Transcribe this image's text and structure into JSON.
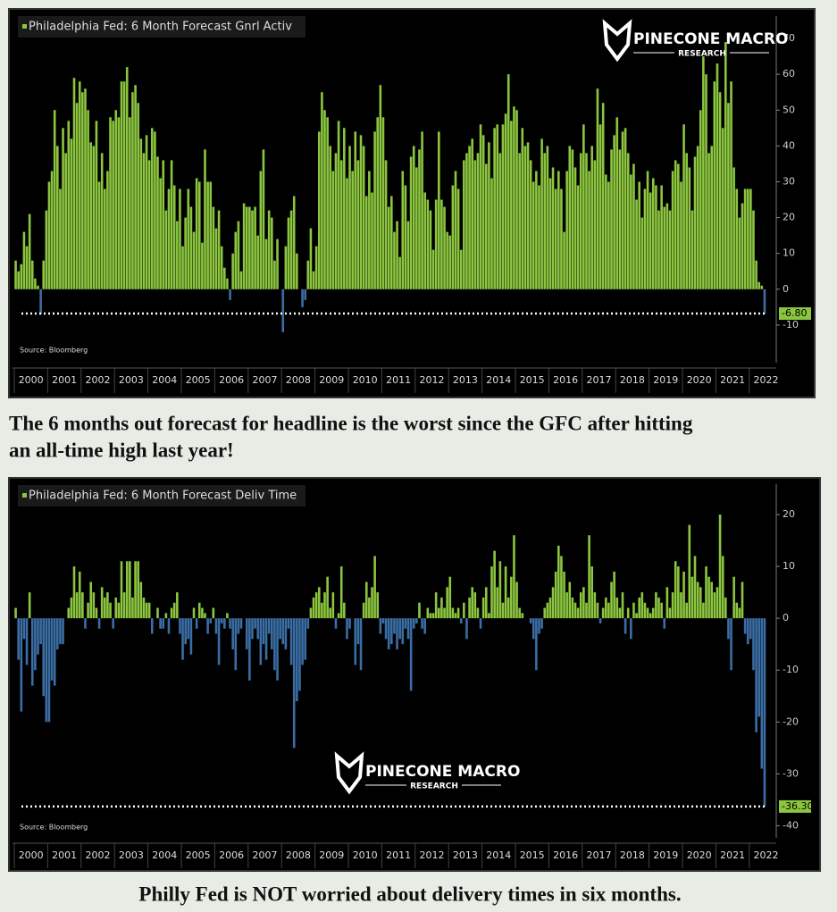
{
  "chart_data": [
    {
      "type": "bar",
      "legend": "Philadelphia Fed: 6 Month Forecast Gnrl Activ",
      "source": "Source: Bloomberg",
      "logo": {
        "name": "PINECONE MACRO",
        "sub": "RESEARCH"
      },
      "categories": [
        "2000",
        "2001",
        "2002",
        "2003",
        "2004",
        "2005",
        "2006",
        "2007",
        "2008",
        "2009",
        "2010",
        "2011",
        "2012",
        "2013",
        "2014",
        "2015",
        "2016",
        "2017",
        "2018",
        "2019",
        "2020",
        "2021",
        "2022"
      ],
      "values": [
        [
          8,
          5,
          7,
          16,
          12,
          21,
          8,
          3,
          1,
          -7,
          8,
          22
        ],
        [
          30,
          33,
          50,
          40,
          28,
          45,
          38,
          47,
          42,
          59,
          52,
          58
        ],
        [
          55,
          56,
          50,
          41,
          40,
          47,
          30,
          38,
          28,
          33,
          48,
          47
        ],
        [
          50,
          48,
          58,
          58,
          62,
          48,
          55,
          57,
          52,
          42,
          38,
          43
        ],
        [
          36,
          45,
          44,
          37,
          31,
          36,
          22,
          28,
          36,
          29,
          19,
          28
        ],
        [
          12,
          20,
          28,
          23,
          16,
          31,
          30,
          13,
          39,
          30,
          30,
          23
        ],
        [
          17,
          22,
          12,
          6,
          3,
          -3,
          10,
          16,
          19,
          5,
          24,
          23
        ],
        [
          23,
          22,
          23,
          15,
          33,
          39,
          14,
          22,
          20,
          8,
          14,
          0
        ],
        [
          -12,
          12,
          20,
          22,
          26,
          10,
          0,
          -5,
          -3,
          8,
          17,
          5
        ],
        [
          12,
          44,
          55,
          50,
          48,
          40,
          33,
          38,
          47,
          36,
          45,
          31
        ],
        [
          40,
          33,
          44,
          36,
          43,
          40,
          26,
          33,
          27,
          44,
          48,
          57
        ],
        [
          48,
          36,
          23,
          26,
          16,
          19,
          9,
          33,
          29,
          19,
          37,
          40
        ],
        [
          34,
          39,
          44,
          27,
          25,
          22,
          11,
          25,
          44,
          25,
          23,
          16
        ],
        [
          15,
          29,
          33,
          28,
          11,
          36,
          38,
          40,
          42,
          36,
          38,
          46
        ],
        [
          43,
          35,
          41,
          31,
          45,
          46,
          38,
          46,
          49,
          60,
          47,
          51
        ],
        [
          50,
          38,
          45,
          40,
          41,
          36,
          30,
          33,
          29,
          42,
          38,
          40
        ],
        [
          31,
          34,
          28,
          33,
          28,
          16,
          33,
          40,
          39,
          34,
          29,
          38
        ],
        [
          46,
          38,
          33,
          40,
          36,
          56,
          46,
          52,
          32,
          30,
          39,
          43
        ],
        [
          48,
          39,
          44,
          45,
          38,
          32,
          35,
          25,
          30,
          20,
          28,
          33
        ],
        [
          27,
          31,
          29,
          22,
          29,
          23,
          24,
          22,
          33,
          36,
          35,
          30
        ],
        [
          46,
          38,
          34,
          22,
          37,
          40,
          50,
          65,
          60,
          38,
          40,
          58
        ],
        [
          63,
          55,
          45,
          69,
          52,
          58,
          34,
          28,
          20,
          24,
          28,
          28
        ],
        [
          28,
          22,
          8,
          2,
          1,
          -6.8
        ]
      ],
      "colors": {
        "positive": "#8cc63f",
        "negative": "#3a6ea5"
      },
      "last_value": {
        "value": -6.8,
        "label": "-6.80"
      },
      "ylim": [
        -20,
        75
      ],
      "yticks": [
        -10,
        0,
        10,
        20,
        30,
        40,
        50,
        60,
        70
      ]
    },
    {
      "type": "bar",
      "legend": "Philadelphia Fed: 6 Month Forecast Deliv Time",
      "source": "Source: Bloomberg",
      "logo": {
        "name": "PINECONE MACRO",
        "sub": "RESEARCH"
      },
      "categories": [
        "2000",
        "2001",
        "2002",
        "2003",
        "2004",
        "2005",
        "2006",
        "2007",
        "2008",
        "2009",
        "2010",
        "2011",
        "2012",
        "2013",
        "2014",
        "2015",
        "2016",
        "2017",
        "2018",
        "2019",
        "2020",
        "2021",
        "2022"
      ],
      "values": [
        [
          2,
          -8,
          -18,
          -4,
          -9,
          5,
          -13,
          -10,
          -7,
          -5,
          -15,
          -20
        ],
        [
          -20,
          -12,
          -13,
          -6,
          -5,
          -5,
          0,
          2,
          4,
          10,
          5,
          9
        ],
        [
          5,
          -2,
          3,
          7,
          5,
          2,
          -2,
          6,
          4,
          5,
          3,
          -2
        ],
        [
          4,
          3,
          11,
          5,
          11,
          11,
          4,
          11,
          11,
          7,
          4,
          3
        ],
        [
          3,
          -3,
          0,
          2,
          -2,
          -2,
          1,
          -3,
          2,
          3,
          5,
          -3
        ],
        [
          -8,
          -5,
          -4,
          -7,
          2,
          -2,
          3,
          2,
          1,
          -3,
          -1,
          2
        ],
        [
          -3,
          -9,
          -1,
          -2,
          1,
          -2,
          -6,
          -10,
          -3,
          -2,
          0,
          -6
        ],
        [
          -12,
          -4,
          -2,
          -4,
          -9,
          -5,
          -8,
          -3,
          -6,
          -10,
          -12,
          -4
        ],
        [
          -5,
          -6,
          -2,
          -9,
          -25,
          -16,
          -14,
          -9,
          -8,
          -2,
          2,
          4
        ],
        [
          5,
          6,
          3,
          5,
          8,
          2,
          5,
          -2,
          1,
          10,
          3,
          -4
        ],
        [
          -2,
          0,
          -9,
          -5,
          -10,
          3,
          7,
          4,
          6,
          12,
          5,
          -3
        ],
        [
          -1,
          -4,
          -6,
          -5,
          -3,
          -6,
          -4,
          -5,
          -2,
          -4,
          -14,
          -2
        ],
        [
          -1,
          3,
          -2,
          -3,
          2,
          1,
          1,
          5,
          2,
          4,
          2,
          6
        ],
        [
          8,
          2,
          1,
          2,
          -1,
          3,
          -4,
          4,
          6,
          5,
          2,
          -2
        ],
        [
          4,
          6,
          1,
          10,
          13,
          6,
          11,
          3,
          10,
          4,
          8,
          16
        ],
        [
          7,
          2,
          1,
          0,
          0,
          -1,
          -4,
          -10,
          -3,
          -2,
          2,
          3
        ],
        [
          4,
          6,
          9,
          14,
          12,
          9,
          5,
          7,
          4,
          3,
          2,
          5
        ],
        [
          6,
          3,
          16,
          10,
          5,
          3,
          -1,
          2,
          4,
          3,
          7,
          9
        ],
        [
          4,
          2,
          5,
          -3,
          2,
          -4,
          3,
          1,
          4,
          5,
          3,
          2
        ],
        [
          1,
          2,
          5,
          4,
          3,
          -2,
          6,
          2,
          5,
          11,
          10,
          5
        ],
        [
          9,
          3,
          18,
          8,
          12,
          7,
          6,
          3,
          10,
          8,
          7,
          5
        ],
        [
          6,
          20,
          12,
          4,
          -4,
          -10,
          8,
          3,
          2,
          7,
          -3,
          -5
        ],
        [
          -4,
          -10,
          -22,
          -19,
          -29,
          -36.3
        ]
      ],
      "colors": {
        "positive": "#8cc63f",
        "negative": "#3a6ea5"
      },
      "last_value": {
        "value": -36.3,
        "label": "-36.30"
      },
      "ylim": [
        -42,
        25
      ],
      "yticks": [
        -40,
        -30,
        -20,
        -10,
        0,
        10,
        20
      ]
    }
  ],
  "captions": [
    "The 6 months out forecast for headline is the worst since the GFC after hitting",
    "an all-time high last year!",
    "Philly Fed is NOT worried about delivery times in six months."
  ]
}
